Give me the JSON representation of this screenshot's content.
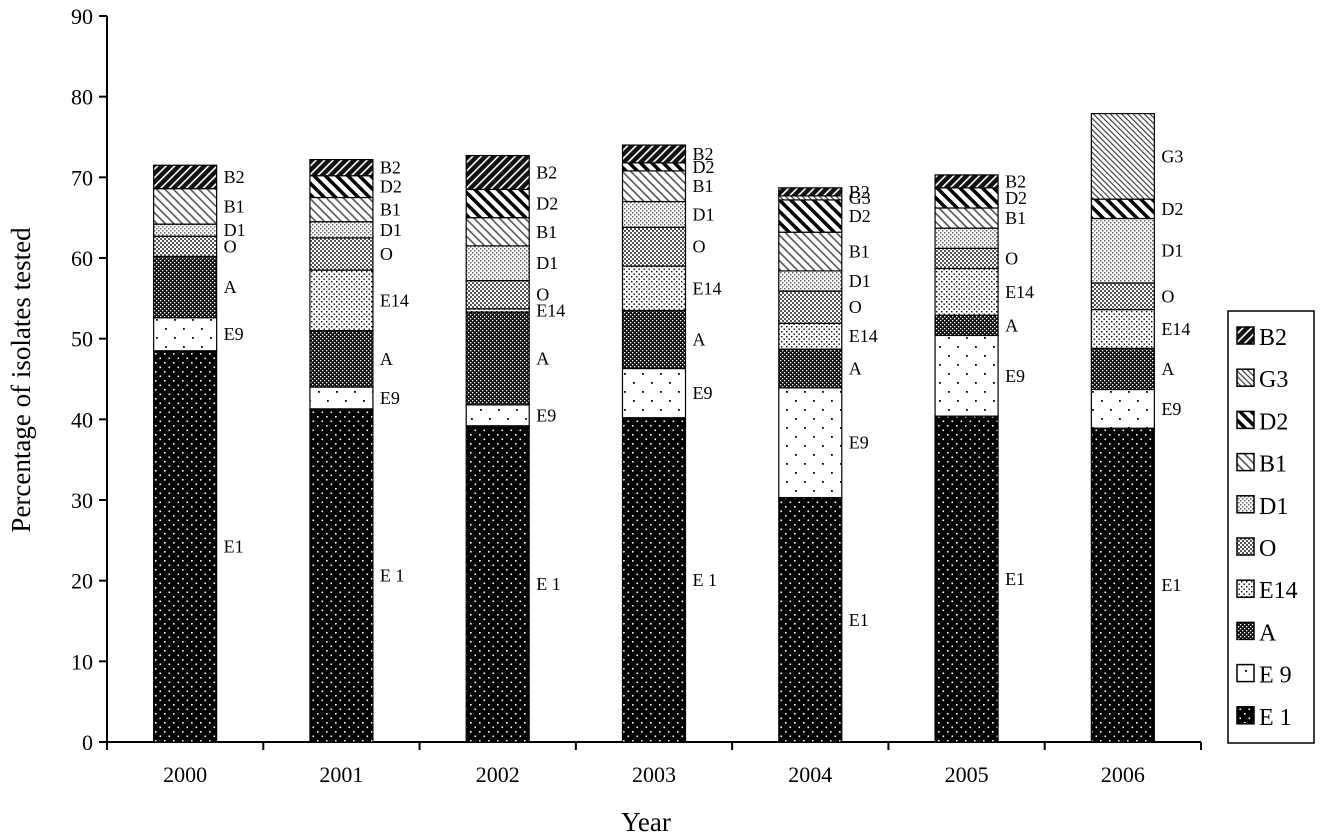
{
  "chart_data": {
    "type": "bar",
    "stacked": true,
    "title": "",
    "xlabel": "Year",
    "ylabel": "Percentage of isolates tested",
    "ylim": [
      0,
      90
    ],
    "yticks": [
      "0",
      "10",
      "20",
      "30",
      "40",
      "50",
      "60",
      "70",
      "80",
      "90"
    ],
    "grid": false,
    "legend_position": "right",
    "categories": [
      "2000",
      "2001",
      "2002",
      "2003",
      "2004",
      "2005",
      "2006"
    ],
    "series": [
      {
        "key": "E1",
        "name": "E 1",
        "pattern": "pat-dense-dots",
        "values": [
          48.5,
          41.3,
          39.2,
          40.2,
          30.3,
          40.4,
          38.9
        ]
      },
      {
        "key": "E9",
        "name": "E 9",
        "pattern": "pat-sparse-dots",
        "values": [
          4.1,
          2.7,
          2.6,
          6.1,
          13.6,
          10.0,
          4.8
        ]
      },
      {
        "key": "A",
        "name": "A",
        "pattern": "pat-dark-checker",
        "values": [
          7.6,
          7.0,
          11.5,
          7.2,
          4.8,
          2.5,
          5.1
        ]
      },
      {
        "key": "E14",
        "name": "E14",
        "pattern": "pat-fine-dots",
        "values": [
          0,
          7.5,
          0.4,
          5.5,
          3.2,
          5.8,
          4.8
        ]
      },
      {
        "key": "O",
        "name": "O",
        "pattern": "pat-med-checker",
        "values": [
          2.5,
          4.0,
          3.5,
          4.8,
          4.0,
          2.5,
          3.3
        ]
      },
      {
        "key": "D1",
        "name": "D1",
        "pattern": "pat-light-checker",
        "values": [
          1.5,
          2.0,
          4.3,
          3.2,
          2.5,
          2.5,
          8.0
        ]
      },
      {
        "key": "B1",
        "name": "B1",
        "pattern": "pat-wide-diag",
        "values": [
          4.4,
          3.0,
          3.5,
          3.8,
          4.8,
          2.5,
          0
        ]
      },
      {
        "key": "D2",
        "name": "D2",
        "pattern": "pat-thick-diag",
        "values": [
          0,
          2.7,
          3.5,
          1.0,
          4.0,
          2.5,
          2.4
        ]
      },
      {
        "key": "G3",
        "name": "G3",
        "pattern": "pat-fine-diag",
        "values": [
          0,
          0,
          0,
          0,
          0.5,
          0,
          10.6
        ]
      },
      {
        "key": "B2",
        "name": "B2",
        "pattern": "pat-dark-diag",
        "values": [
          2.9,
          2.0,
          4.2,
          2.2,
          1.0,
          1.6,
          0
        ]
      }
    ],
    "segment_labels": [
      {
        "year": "2000",
        "labels": {
          "E1": "E1",
          "E9": "E9",
          "A": "A",
          "O": "O",
          "D1": "D1",
          "B1": "B1",
          "B2": "B2"
        }
      },
      {
        "year": "2001",
        "labels": {
          "E1": "E 1",
          "E9": "E9",
          "A": "A",
          "E14": "E14",
          "O": "O",
          "D1": "D1",
          "B1": "B1",
          "D2": "D2",
          "B2": "B2"
        }
      },
      {
        "year": "2002",
        "labels": {
          "E1": "E 1",
          "E9": "E9",
          "A": "A",
          "E14": "E14",
          "O": "O",
          "D1": "D1",
          "B1": "B1",
          "D2": "D2",
          "B2": "B2"
        }
      },
      {
        "year": "2003",
        "labels": {
          "E1": "E 1",
          "E9": "E9",
          "A": "A",
          "E14": "E14",
          "O": "O",
          "D1": "D1",
          "B1": "B1",
          "D2": "D2",
          "B2": "B2"
        }
      },
      {
        "year": "2004",
        "labels": {
          "E1": "E1",
          "E9": "E9",
          "A": "A",
          "E14": "E14",
          "O": "O",
          "D1": "D1",
          "B1": "B1",
          "D2": "D2",
          "G3": "G3",
          "B2": "B2"
        }
      },
      {
        "year": "2005",
        "labels": {
          "E1": "E1",
          "E9": "E9",
          "A": "A",
          "E14": "E14",
          "O": "O",
          "B1": "B1",
          "D2": "D2",
          "B2": "B2"
        }
      },
      {
        "year": "2006",
        "labels": {
          "E1": "E1",
          "E9": "E9",
          "A": "A",
          "E14": "E14",
          "O": "O",
          "D1": "D1",
          "D2": "D2",
          "G3": "G3"
        }
      }
    ],
    "legend_order": [
      "B2",
      "G3",
      "D2",
      "B1",
      "D1",
      "O",
      "E14",
      "A",
      "E9",
      "E1"
    ]
  }
}
